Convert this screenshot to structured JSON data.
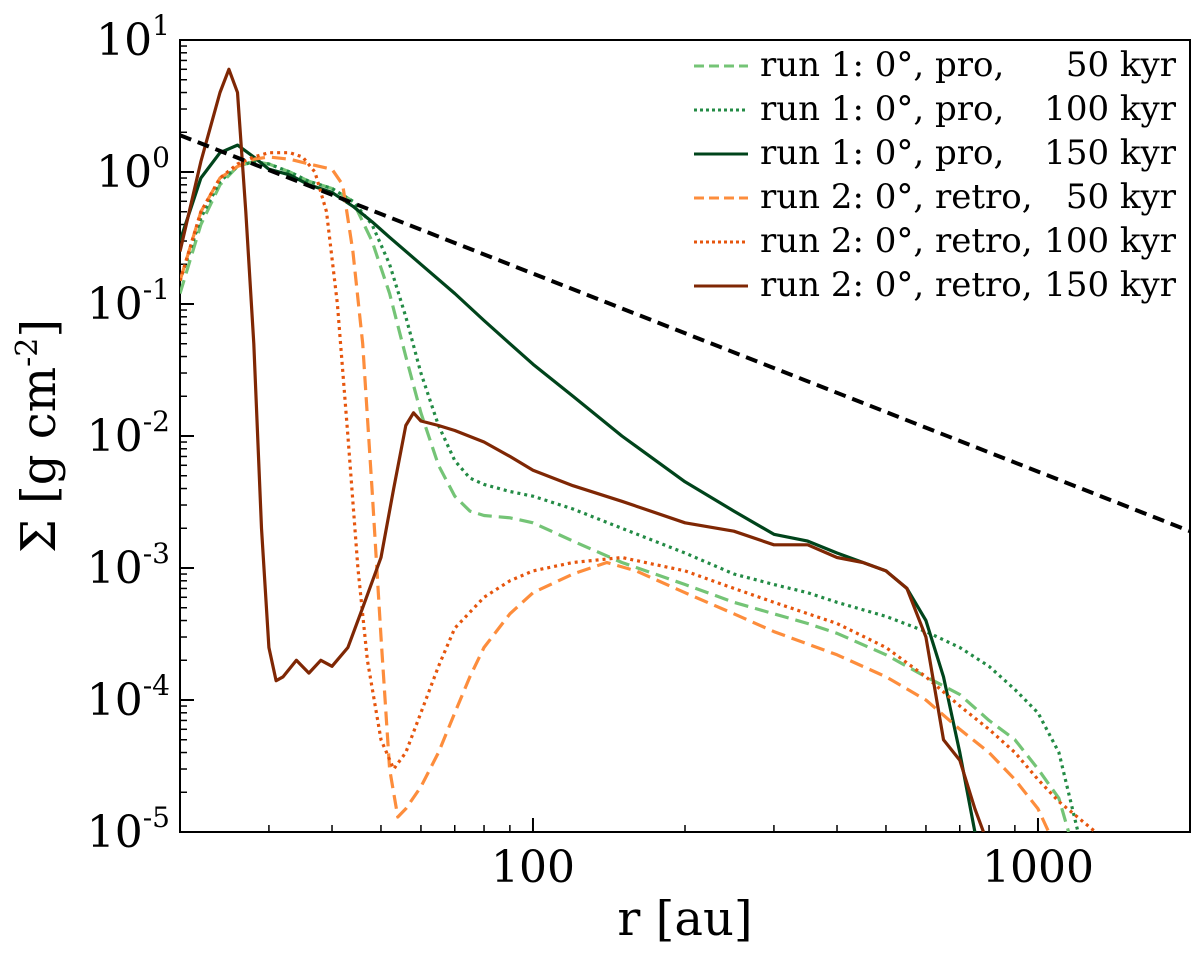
{
  "chart_data": {
    "type": "line",
    "title": "",
    "xlabel": "r [au]",
    "ylabel": "Σ [g cm-2]",
    "xscale": "log",
    "yscale": "log",
    "xlim": [
      20,
      2000
    ],
    "ylim": [
      1e-05,
      10
    ],
    "x_ticks": [
      {
        "value": 100,
        "label": "100"
      },
      {
        "value": 1000,
        "label": "1000"
      }
    ],
    "y_ticks": [
      {
        "value": 10,
        "base": "10",
        "exp": "1"
      },
      {
        "value": 1,
        "base": "10",
        "exp": "0"
      },
      {
        "value": 0.1,
        "base": "10",
        "exp": "-1"
      },
      {
        "value": 0.01,
        "base": "10",
        "exp": "-2"
      },
      {
        "value": 0.001,
        "base": "10",
        "exp": "-3"
      },
      {
        "value": 0.0001,
        "base": "10",
        "exp": "-4"
      },
      {
        "value": 1e-05,
        "base": "10",
        "exp": "-5"
      }
    ],
    "legend_position": "top-right",
    "series": [
      {
        "name": "run 1: 0°, pro, 50 kyr",
        "legend": {
          "prefix": "run 1: 0°, pro,",
          "suffix": "50 kyr"
        },
        "color": "#74c476",
        "style": "dashed",
        "points": [
          [
            20,
            0.12
          ],
          [
            22,
            0.4
          ],
          [
            24,
            0.8
          ],
          [
            26,
            1.1
          ],
          [
            28,
            1.2
          ],
          [
            30,
            1.15
          ],
          [
            33,
            1.0
          ],
          [
            36,
            0.85
          ],
          [
            40,
            0.75
          ],
          [
            44,
            0.6
          ],
          [
            48,
            0.3
          ],
          [
            52,
            0.12
          ],
          [
            56,
            0.04
          ],
          [
            60,
            0.015
          ],
          [
            65,
            0.006
          ],
          [
            70,
            0.0035
          ],
          [
            75,
            0.0027
          ],
          [
            80,
            0.0025
          ],
          [
            90,
            0.0024
          ],
          [
            100,
            0.0022
          ],
          [
            120,
            0.0016
          ],
          [
            150,
            0.0011
          ],
          [
            200,
            0.00075
          ],
          [
            250,
            0.00055
          ],
          [
            300,
            0.00045
          ],
          [
            350,
            0.00038
          ],
          [
            400,
            0.00032
          ],
          [
            500,
            0.00022
          ],
          [
            600,
            0.00015
          ],
          [
            700,
            0.00011
          ],
          [
            800,
            7e-05
          ],
          [
            900,
            5e-05
          ],
          [
            1000,
            3e-05
          ],
          [
            1100,
            1.8e-05
          ],
          [
            1150,
            1e-05
          ]
        ]
      },
      {
        "name": "run 1: 0°, pro, 100 kyr",
        "legend": {
          "prefix": "run 1: 0°, pro,",
          "suffix": "100 kyr"
        },
        "color": "#238b45",
        "style": "dotted",
        "points": [
          [
            20,
            0.15
          ],
          [
            22,
            0.45
          ],
          [
            24,
            0.85
          ],
          [
            26,
            1.1
          ],
          [
            28,
            1.2
          ],
          [
            30,
            1.15
          ],
          [
            33,
            1.0
          ],
          [
            36,
            0.85
          ],
          [
            40,
            0.75
          ],
          [
            44,
            0.6
          ],
          [
            48,
            0.4
          ],
          [
            52,
            0.2
          ],
          [
            56,
            0.08
          ],
          [
            60,
            0.03
          ],
          [
            65,
            0.012
          ],
          [
            70,
            0.0065
          ],
          [
            75,
            0.0048
          ],
          [
            80,
            0.0043
          ],
          [
            90,
            0.0038
          ],
          [
            100,
            0.0035
          ],
          [
            120,
            0.0028
          ],
          [
            150,
            0.002
          ],
          [
            200,
            0.0013
          ],
          [
            250,
            0.0009
          ],
          [
            300,
            0.00075
          ],
          [
            350,
            0.00065
          ],
          [
            400,
            0.00055
          ],
          [
            500,
            0.00043
          ],
          [
            600,
            0.00033
          ],
          [
            700,
            0.00025
          ],
          [
            800,
            0.00018
          ],
          [
            900,
            0.00012
          ],
          [
            1000,
            8e-05
          ],
          [
            1100,
            4e-05
          ],
          [
            1200,
            1e-05
          ]
        ]
      },
      {
        "name": "run 1: 0°, pro, 150 kyr",
        "legend": {
          "prefix": "run 1: 0°, pro,",
          "suffix": "150 kyr"
        },
        "color": "#00441b",
        "style": "solid",
        "points": [
          [
            20,
            0.3
          ],
          [
            22,
            0.9
          ],
          [
            24,
            1.4
          ],
          [
            26,
            1.6
          ],
          [
            28,
            1.3
          ],
          [
            30,
            1.05
          ],
          [
            33,
            0.95
          ],
          [
            36,
            0.8
          ],
          [
            40,
            0.7
          ],
          [
            44,
            0.55
          ],
          [
            48,
            0.42
          ],
          [
            52,
            0.32
          ],
          [
            60,
            0.2
          ],
          [
            70,
            0.12
          ],
          [
            80,
            0.075
          ],
          [
            90,
            0.05
          ],
          [
            100,
            0.035
          ],
          [
            120,
            0.02
          ],
          [
            150,
            0.01
          ],
          [
            200,
            0.0045
          ],
          [
            250,
            0.0027
          ],
          [
            300,
            0.0018
          ],
          [
            350,
            0.0016
          ],
          [
            400,
            0.0013
          ],
          [
            500,
            0.00095
          ],
          [
            550,
            0.0007
          ],
          [
            600,
            0.0004
          ],
          [
            650,
            0.00015
          ],
          [
            700,
            4e-05
          ],
          [
            750,
            1e-05
          ]
        ]
      },
      {
        "name": "run 2: 0°, retro, 50 kyr",
        "legend": {
          "prefix": "run 2: 0°, retro,",
          "suffix": "50 kyr"
        },
        "color": "#fd8d3c",
        "style": "dashed",
        "points": [
          [
            20,
            0.15
          ],
          [
            22,
            0.5
          ],
          [
            24,
            0.9
          ],
          [
            26,
            1.1
          ],
          [
            28,
            1.25
          ],
          [
            30,
            1.3
          ],
          [
            33,
            1.25
          ],
          [
            36,
            1.15
          ],
          [
            40,
            1.05
          ],
          [
            42,
            0.8
          ],
          [
            44,
            0.25
          ],
          [
            46,
            0.05
          ],
          [
            48,
            0.004
          ],
          [
            50,
            0.0003
          ],
          [
            52,
            3e-05
          ],
          [
            54,
            1.3e-05
          ],
          [
            56,
            1.5e-05
          ],
          [
            60,
            2.2e-05
          ],
          [
            65,
            4e-05
          ],
          [
            70,
            8e-05
          ],
          [
            75,
            0.00015
          ],
          [
            80,
            0.00025
          ],
          [
            90,
            0.00045
          ],
          [
            100,
            0.00065
          ],
          [
            120,
            0.0009
          ],
          [
            140,
            0.0011
          ],
          [
            160,
            0.00095
          ],
          [
            200,
            0.00065
          ],
          [
            250,
            0.00045
          ],
          [
            300,
            0.00033
          ],
          [
            400,
            0.00022
          ],
          [
            500,
            0.00015
          ],
          [
            600,
            0.0001
          ],
          [
            700,
            6e-05
          ],
          [
            800,
            4e-05
          ],
          [
            900,
            2.5e-05
          ],
          [
            1000,
            1.5e-05
          ],
          [
            1050,
            1e-05
          ]
        ]
      },
      {
        "name": "run 2: 0°, retro, 100 kyr",
        "legend": {
          "prefix": "run 2: 0°, retro,",
          "suffix": "100 kyr"
        },
        "color": "#e6550d",
        "style": "dotted",
        "points": [
          [
            20,
            0.15
          ],
          [
            22,
            0.5
          ],
          [
            24,
            0.9
          ],
          [
            26,
            1.15
          ],
          [
            28,
            1.3
          ],
          [
            30,
            1.4
          ],
          [
            33,
            1.4
          ],
          [
            35,
            1.3
          ],
          [
            37,
            1.0
          ],
          [
            39,
            0.5
          ],
          [
            41,
            0.1
          ],
          [
            43,
            0.01
          ],
          [
            45,
            0.001
          ],
          [
            47,
            0.0002
          ],
          [
            50,
            5e-05
          ],
          [
            53,
            3e-05
          ],
          [
            56,
            4e-05
          ],
          [
            60,
            8e-05
          ],
          [
            65,
            0.00018
          ],
          [
            70,
            0.00035
          ],
          [
            80,
            0.0006
          ],
          [
            90,
            0.0008
          ],
          [
            100,
            0.00095
          ],
          [
            120,
            0.0011
          ],
          [
            150,
            0.0012
          ],
          [
            200,
            0.00095
          ],
          [
            250,
            0.0007
          ],
          [
            300,
            0.00055
          ],
          [
            400,
            0.00038
          ],
          [
            500,
            0.00025
          ],
          [
            600,
            0.00015
          ],
          [
            700,
            9e-05
          ],
          [
            800,
            6e-05
          ],
          [
            900,
            4e-05
          ],
          [
            1000,
            2.5e-05
          ],
          [
            1100,
            1.7e-05
          ],
          [
            1300,
            1e-05
          ]
        ]
      },
      {
        "name": "run 2: 0°, retro, 150 kyr",
        "legend": {
          "prefix": "run 2: 0°, retro,",
          "suffix": "150 kyr"
        },
        "color": "#7f2704",
        "style": "solid",
        "points": [
          [
            20,
            0.25
          ],
          [
            22,
            1.2
          ],
          [
            24,
            4.0
          ],
          [
            25,
            6.0
          ],
          [
            26,
            4.0
          ],
          [
            27,
            0.5
          ],
          [
            28,
            0.05
          ],
          [
            29,
            0.002
          ],
          [
            30,
            0.00025
          ],
          [
            31,
            0.00014
          ],
          [
            32,
            0.00015
          ],
          [
            34,
            0.0002
          ],
          [
            36,
            0.00016
          ],
          [
            38,
            0.0002
          ],
          [
            40,
            0.00018
          ],
          [
            43,
            0.00025
          ],
          [
            46,
            0.0005
          ],
          [
            50,
            0.0012
          ],
          [
            53,
            0.004
          ],
          [
            56,
            0.012
          ],
          [
            58,
            0.015
          ],
          [
            60,
            0.013
          ],
          [
            65,
            0.012
          ],
          [
            70,
            0.011
          ],
          [
            80,
            0.009
          ],
          [
            90,
            0.007
          ],
          [
            100,
            0.0055
          ],
          [
            120,
            0.0042
          ],
          [
            150,
            0.0032
          ],
          [
            200,
            0.0022
          ],
          [
            250,
            0.0019
          ],
          [
            300,
            0.0015
          ],
          [
            350,
            0.0015
          ],
          [
            400,
            0.0012
          ],
          [
            450,
            0.0011
          ],
          [
            500,
            0.00095
          ],
          [
            550,
            0.0007
          ],
          [
            600,
            0.0003
          ],
          [
            650,
            5e-05
          ],
          [
            700,
            3.5e-05
          ],
          [
            750,
            1.5e-05
          ],
          [
            780,
            1e-05
          ]
        ]
      },
      {
        "name": "reference power law",
        "color": "#000000",
        "style": "dashed",
        "show_in_legend": false,
        "points": [
          [
            20,
            1.9
          ],
          [
            2000,
            0.0019
          ]
        ]
      }
    ]
  }
}
